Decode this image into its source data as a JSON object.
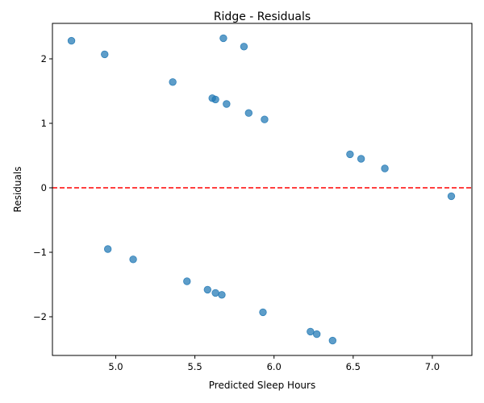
{
  "chart_data": {
    "type": "scatter",
    "title": "Ridge - Residuals",
    "xlabel": "Predicted Sleep Hours",
    "ylabel": "Residuals",
    "xlim": [
      4.6,
      7.25
    ],
    "ylim": [
      -2.6,
      2.55
    ],
    "xticks": [
      5.0,
      5.5,
      6.0,
      6.5,
      7.0
    ],
    "xtick_labels": [
      "5.0",
      "5.5",
      "6.0",
      "6.5",
      "7.0"
    ],
    "yticks": [
      -2,
      -1,
      0,
      1,
      2
    ],
    "ytick_labels": [
      "−2",
      "−1",
      "0",
      "1",
      "2"
    ],
    "grid": false,
    "point_color": "#1f77b4",
    "reference_line": {
      "y": 0,
      "color": "#ff0000",
      "style": "dashed"
    },
    "points": [
      {
        "x": 4.72,
        "y": 2.28
      },
      {
        "x": 4.93,
        "y": 2.07
      },
      {
        "x": 5.36,
        "y": 1.64
      },
      {
        "x": 5.68,
        "y": 2.32
      },
      {
        "x": 5.81,
        "y": 2.19
      },
      {
        "x": 5.61,
        "y": 1.39
      },
      {
        "x": 5.63,
        "y": 1.37
      },
      {
        "x": 5.7,
        "y": 1.3
      },
      {
        "x": 5.84,
        "y": 1.16
      },
      {
        "x": 5.94,
        "y": 1.06
      },
      {
        "x": 6.48,
        "y": 0.52
      },
      {
        "x": 6.55,
        "y": 0.45
      },
      {
        "x": 6.7,
        "y": 0.3
      },
      {
        "x": 7.12,
        "y": -0.13
      },
      {
        "x": 4.95,
        "y": -0.95
      },
      {
        "x": 5.11,
        "y": -1.11
      },
      {
        "x": 5.45,
        "y": -1.45
      },
      {
        "x": 5.58,
        "y": -1.58
      },
      {
        "x": 5.63,
        "y": -1.63
      },
      {
        "x": 5.67,
        "y": -1.66
      },
      {
        "x": 5.93,
        "y": -1.93
      },
      {
        "x": 6.23,
        "y": -2.23
      },
      {
        "x": 6.27,
        "y": -2.27
      },
      {
        "x": 6.37,
        "y": -2.37
      }
    ]
  }
}
